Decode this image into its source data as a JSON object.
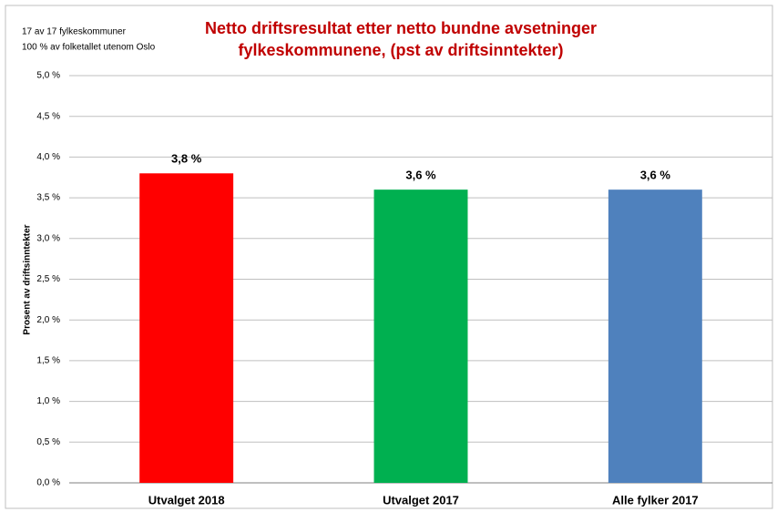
{
  "chart_data": {
    "type": "bar",
    "title": [
      "Netto driftsresultat etter netto bundne avsetninger",
      "fylkeskommunene, (pst av driftsinntekter)"
    ],
    "annotations": [
      "17 av 17 fylkeskommuner",
      "100 % av folketallet utenom Oslo"
    ],
    "ylabel": "Prosent av driftsinntekter",
    "categories": [
      "Utvalget 2018",
      "Utvalget 2017",
      "Alle fylker 2017"
    ],
    "values": [
      3.8,
      3.6,
      3.6
    ],
    "value_labels": [
      "3,8 %",
      "3,6 %",
      "3,6 %"
    ],
    "colors": [
      "#ff0000",
      "#00b050",
      "#4f81bd"
    ],
    "ylim": [
      0,
      5
    ],
    "yticks": [
      {
        "value": 0,
        "label": "0,0 %"
      },
      {
        "value": 0.5,
        "label": "0,5 %"
      },
      {
        "value": 1,
        "label": "1,0 %"
      },
      {
        "value": 1.5,
        "label": "1,5 %"
      },
      {
        "value": 2,
        "label": "2,0 %"
      },
      {
        "value": 2.5,
        "label": "2,5 %"
      },
      {
        "value": 3,
        "label": "3,0 %"
      },
      {
        "value": 3.5,
        "label": "3,5 %"
      },
      {
        "value": 4,
        "label": "4,0 %"
      },
      {
        "value": 4.5,
        "label": "4,5 %"
      },
      {
        "value": 5,
        "label": "5,0 %"
      }
    ],
    "grid": true
  }
}
